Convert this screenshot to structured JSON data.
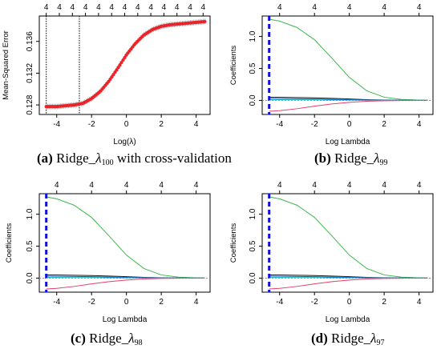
{
  "chart_data": [
    {
      "type": "line",
      "panel_id": "a",
      "caption": {
        "label": "(a)",
        "text_before": "Ridge_",
        "lambda": "λ",
        "subscript": "100",
        "text_after": " with cross-validation"
      },
      "xlabel": "Log(λ)",
      "ylabel": "Mean-Squared Error",
      "xlim": [
        -5.0,
        4.8
      ],
      "ylim": [
        0.1268,
        0.1392
      ],
      "x_ticks": [
        -4,
        -2,
        0,
        2,
        4
      ],
      "y_ticks": [
        0.128,
        0.132,
        0.136
      ],
      "top_axis_ticks": [
        -4.6,
        -3.85,
        -3.1,
        -2.35,
        -1.6,
        -0.85,
        -0.1,
        0.65,
        1.4,
        2.15,
        2.9,
        3.65,
        4.4
      ],
      "top_axis_labels": [
        "4",
        "4",
        "4",
        "4",
        "4",
        "4",
        "4",
        "4",
        "4",
        "4",
        "4",
        "4",
        "4"
      ],
      "vlines": [
        -4.6,
        -2.7
      ],
      "cv_curve": {
        "x": [
          -4.6,
          -4.0,
          -3.5,
          -3.0,
          -2.5,
          -2.0,
          -1.5,
          -1.0,
          -0.5,
          0.0,
          0.5,
          1.0,
          1.5,
          2.0,
          2.5,
          3.0,
          3.5,
          4.0,
          4.5
        ],
        "y": [
          0.1278,
          0.1278,
          0.1279,
          0.128,
          0.1282,
          0.1288,
          0.1297,
          0.131,
          0.1326,
          0.1343,
          0.1357,
          0.1368,
          0.1375,
          0.1379,
          0.1381,
          0.1382,
          0.1383,
          0.1384,
          0.1385
        ]
      },
      "color": "#e8252b"
    },
    {
      "type": "line",
      "panel_id": "b",
      "caption": {
        "label": "(b)",
        "text_before": "Ridge_",
        "lambda": "λ",
        "subscript": "99",
        "text_after": ""
      },
      "xlabel": "Log Lambda",
      "ylabel": "Coefficients",
      "xlim": [
        -5.0,
        4.8
      ],
      "ylim": [
        -0.22,
        1.32
      ],
      "x_ticks": [
        -4,
        -2,
        0,
        2,
        4
      ],
      "y_ticks": [
        0.0,
        0.5,
        1.0
      ],
      "top_axis_ticks": [
        -4,
        -2,
        0,
        2,
        4
      ],
      "top_axis_labels": [
        "4",
        "4",
        "4",
        "4",
        "4"
      ],
      "vline": -4.6,
      "x": [
        -4.6,
        -4.0,
        -3.0,
        -2.0,
        -1.0,
        0.0,
        1.0,
        2.0,
        3.0,
        4.0,
        4.5
      ],
      "series": [
        {
          "color": "#3cb84a",
          "values": [
            1.27,
            1.24,
            1.14,
            0.95,
            0.66,
            0.36,
            0.15,
            0.05,
            0.015,
            0.004,
            0.002
          ]
        },
        {
          "color": "#1a1a1a",
          "values": [
            0.05,
            0.049,
            0.045,
            0.04,
            0.032,
            0.022,
            0.012,
            0.005,
            0.002,
            0.001,
            0.0
          ]
        },
        {
          "color": "#2255cc",
          "values": [
            0.03,
            0.029,
            0.026,
            0.022,
            0.017,
            0.011,
            0.006,
            0.002,
            0.001,
            0.0,
            0.0
          ]
        },
        {
          "color": "#00b8c8",
          "values": [
            0.01,
            0.01,
            0.009,
            0.008,
            0.006,
            0.004,
            0.002,
            0.001,
            0.0,
            0.0,
            0.0
          ]
        },
        {
          "color": "#e0406a",
          "values": [
            -0.17,
            -0.16,
            -0.13,
            -0.09,
            -0.055,
            -0.03,
            -0.013,
            -0.005,
            -0.002,
            -0.001,
            0.0
          ]
        }
      ]
    },
    {
      "type": "line",
      "panel_id": "c",
      "caption": {
        "label": "(c)",
        "text_before": "Ridge_",
        "lambda": "λ",
        "subscript": "98",
        "text_after": ""
      },
      "xlabel": "Log Lambda",
      "ylabel": "Coefficients",
      "xlim": [
        -5.0,
        4.8
      ],
      "ylim": [
        -0.22,
        1.32
      ],
      "x_ticks": [
        -4,
        -2,
        0,
        2,
        4
      ],
      "y_ticks": [
        0.0,
        0.5,
        1.0
      ],
      "top_axis_ticks": [
        -4,
        -2,
        0,
        2,
        4
      ],
      "top_axis_labels": [
        "4",
        "4",
        "4",
        "4",
        "4"
      ],
      "vline": -4.6,
      "x": [
        -4.6,
        -4.0,
        -3.0,
        -2.0,
        -1.0,
        0.0,
        1.0,
        2.0,
        3.0,
        4.0,
        4.5
      ],
      "series": [
        {
          "color": "#3cb84a",
          "values": [
            1.27,
            1.24,
            1.14,
            0.95,
            0.66,
            0.36,
            0.15,
            0.05,
            0.015,
            0.004,
            0.002
          ]
        },
        {
          "color": "#1a1a1a",
          "values": [
            0.05,
            0.049,
            0.045,
            0.04,
            0.032,
            0.022,
            0.012,
            0.005,
            0.002,
            0.001,
            0.0
          ]
        },
        {
          "color": "#2255cc",
          "values": [
            0.03,
            0.029,
            0.026,
            0.022,
            0.017,
            0.011,
            0.006,
            0.002,
            0.001,
            0.0,
            0.0
          ]
        },
        {
          "color": "#00b8c8",
          "values": [
            0.01,
            0.01,
            0.009,
            0.008,
            0.006,
            0.004,
            0.002,
            0.001,
            0.0,
            0.0,
            0.0
          ]
        },
        {
          "color": "#e0406a",
          "values": [
            -0.17,
            -0.16,
            -0.13,
            -0.09,
            -0.055,
            -0.03,
            -0.013,
            -0.005,
            -0.002,
            -0.001,
            0.0
          ]
        }
      ]
    },
    {
      "type": "line",
      "panel_id": "d",
      "caption": {
        "label": "(d)",
        "text_before": "Ridge_",
        "lambda": "λ",
        "subscript": "97",
        "text_after": ""
      },
      "xlabel": "Log Lambda",
      "ylabel": "Coefficients",
      "xlim": [
        -5.0,
        4.8
      ],
      "ylim": [
        -0.22,
        1.32
      ],
      "x_ticks": [
        -4,
        -2,
        0,
        2,
        4
      ],
      "y_ticks": [
        0.0,
        0.5,
        1.0
      ],
      "top_axis_ticks": [
        -4,
        -2,
        0,
        2,
        4
      ],
      "top_axis_labels": [
        "4",
        "4",
        "4",
        "4",
        "4"
      ],
      "vline": -4.6,
      "x": [
        -4.6,
        -4.0,
        -3.0,
        -2.0,
        -1.0,
        0.0,
        1.0,
        2.0,
        3.0,
        4.0,
        4.5
      ],
      "series": [
        {
          "color": "#3cb84a",
          "values": [
            1.27,
            1.24,
            1.14,
            0.95,
            0.66,
            0.36,
            0.15,
            0.05,
            0.015,
            0.004,
            0.002
          ]
        },
        {
          "color": "#1a1a1a",
          "values": [
            0.05,
            0.049,
            0.045,
            0.04,
            0.032,
            0.022,
            0.012,
            0.005,
            0.002,
            0.001,
            0.0
          ]
        },
        {
          "color": "#2255cc",
          "values": [
            0.03,
            0.029,
            0.026,
            0.022,
            0.017,
            0.011,
            0.006,
            0.002,
            0.001,
            0.0,
            0.0
          ]
        },
        {
          "color": "#00b8c8",
          "values": [
            0.01,
            0.01,
            0.009,
            0.008,
            0.006,
            0.004,
            0.002,
            0.001,
            0.0,
            0.0,
            0.0
          ]
        },
        {
          "color": "#e0406a",
          "values": [
            -0.17,
            -0.16,
            -0.13,
            -0.09,
            -0.055,
            -0.03,
            -0.013,
            -0.005,
            -0.002,
            -0.001,
            0.0
          ]
        }
      ]
    }
  ]
}
